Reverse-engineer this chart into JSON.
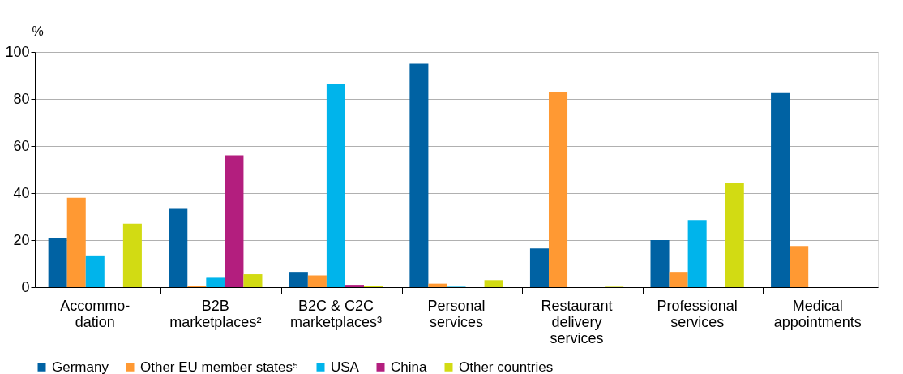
{
  "chart_data": {
    "type": "bar",
    "ylabel": "%",
    "categories": [
      "Accommo-\ndation",
      "B2B\nmarketplaces²",
      "B2C & C2C\nmarketplaces³",
      "Personal\nservices",
      "Restaurant\ndelivery\nservices",
      "Professional\nservices",
      "Medical\nappointments"
    ],
    "series": [
      {
        "name": "Germany",
        "color": "#0062a3",
        "values": [
          21,
          33.3,
          6.5,
          95,
          16.5,
          20,
          82.5
        ]
      },
      {
        "name": "Other EU member states⁵",
        "color": "#ff9933",
        "values": [
          38,
          0.5,
          5,
          1.5,
          83,
          6.5,
          17.5
        ]
      },
      {
        "name": "USA",
        "color": "#00b4eb",
        "values": [
          13.5,
          4,
          86.3,
          0.2,
          0,
          28.5,
          0
        ]
      },
      {
        "name": "China",
        "color": "#b31e7e",
        "values": [
          null,
          56,
          1,
          0,
          0,
          0,
          0
        ]
      },
      {
        "name": "Other countries",
        "color": "#d2db13",
        "values": [
          27,
          5.5,
          0.5,
          3,
          0.2,
          44.5,
          0
        ]
      }
    ],
    "ylim": [
      0,
      100
    ],
    "yticks": [
      0,
      20,
      40,
      60,
      80,
      100
    ],
    "grid": "y",
    "legend": "bottom"
  }
}
